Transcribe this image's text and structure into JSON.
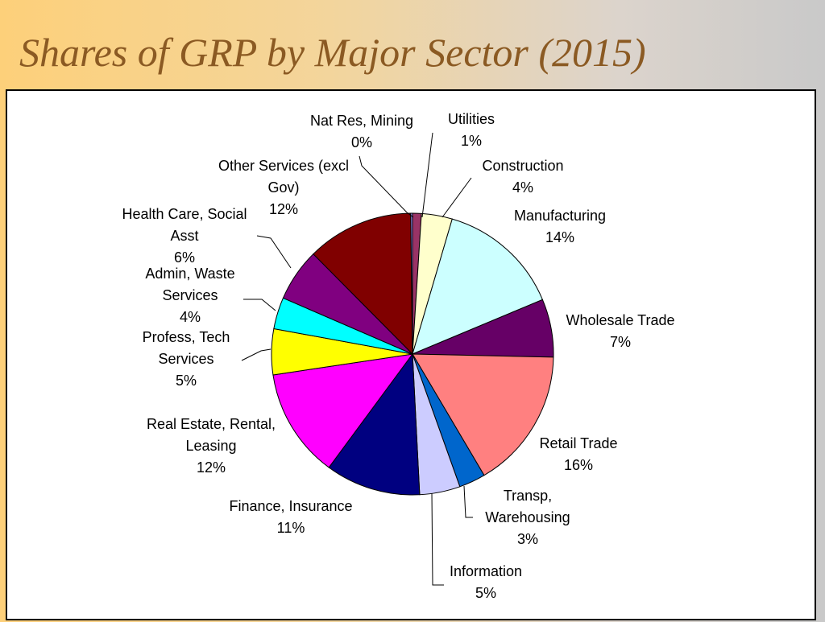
{
  "title": "Shares of GRP by Major Sector (2015)",
  "chart_data": {
    "type": "pie",
    "title": "",
    "start_angle_deg": 0,
    "direction": "clockwise",
    "slices": [
      {
        "label": [
          "Utilities"
        ],
        "value_label": "1%",
        "value": 1,
        "color": "#993366"
      },
      {
        "label": [
          "Construction"
        ],
        "value_label": "4%",
        "value": 3.5,
        "color": "#ffffcc"
      },
      {
        "label": [
          "Manufacturing"
        ],
        "value_label": "14%",
        "value": 14,
        "color": "#ccffff"
      },
      {
        "label": [
          "Wholesale Trade"
        ],
        "value_label": "7%",
        "value": 6.6,
        "color": "#660066"
      },
      {
        "label": [
          "Retail Trade"
        ],
        "value_label": "16%",
        "value": 16,
        "color": "#ff8080"
      },
      {
        "label": [
          "Transp,",
          "Warehousing"
        ],
        "value_label": "3%",
        "value": 3,
        "color": "#0066cc"
      },
      {
        "label": [
          "Information"
        ],
        "value_label": "5%",
        "value": 4.6,
        "color": "#ccccff"
      },
      {
        "label": [
          "Finance, Insurance"
        ],
        "value_label": "11%",
        "value": 10.8,
        "color": "#000080"
      },
      {
        "label": [
          "Real Estate, Rental,",
          "Leasing"
        ],
        "value_label": "12%",
        "value": 12.4,
        "color": "#ff00ff"
      },
      {
        "label": [
          "Profess, Tech",
          "Services"
        ],
        "value_label": "5%",
        "value": 5.2,
        "color": "#ffff00"
      },
      {
        "label": [
          "Admin, Waste",
          "Services"
        ],
        "value_label": "4%",
        "value": 3.6,
        "color": "#00ffff"
      },
      {
        "label": [
          "Health Care, Social",
          "Asst"
        ],
        "value_label": "6%",
        "value": 6,
        "color": "#800080"
      },
      {
        "label": [
          "Other Services (excl",
          "Gov)"
        ],
        "value_label": "12%",
        "value": 12.1,
        "color": "#800000"
      },
      {
        "label": [
          "Nat Res, Mining"
        ],
        "value_label": "0%",
        "value": 0.2,
        "color": "#9999ff"
      }
    ]
  }
}
